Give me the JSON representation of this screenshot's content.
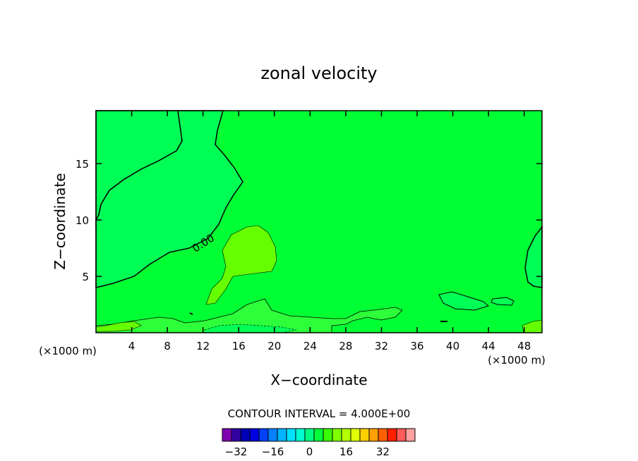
{
  "chart_data": {
    "type": "contour",
    "title": "zonal velocity",
    "xlabel": "X−coordinate",
    "ylabel": "Z−coordinate",
    "x_unit_left": "(×1000 m)",
    "x_unit_right": "(×1000 m)",
    "xlim": [
      0,
      50
    ],
    "ylim": [
      0,
      19.7
    ],
    "x_ticks": [
      "4",
      "8",
      "12",
      "16",
      "20",
      "24",
      "28",
      "32",
      "36",
      "40",
      "44",
      "48"
    ],
    "x_tick_values": [
      4,
      8,
      12,
      16,
      20,
      24,
      28,
      32,
      36,
      40,
      44,
      48
    ],
    "y_ticks": [
      "5",
      "10",
      "15"
    ],
    "y_tick_values": [
      5,
      10,
      15
    ],
    "contour_label": "0.00",
    "contour_interval_text": "CONTOUR INTERVAL = 4.000E+00",
    "colorbar": {
      "levels": [
        -36,
        -32,
        -28,
        -24,
        -20,
        -16,
        -12,
        -8,
        -4,
        0,
        4,
        8,
        12,
        16,
        20,
        24,
        28,
        32,
        36
      ],
      "colors": [
        "#8000b0",
        "#3300a0",
        "#0000b4",
        "#0000e0",
        "#0040ff",
        "#0080ff",
        "#00b4ff",
        "#00e0ff",
        "#00ffd0",
        "#00ff80",
        "#00ff3a",
        "#3aff00",
        "#80ff00",
        "#b4ff00",
        "#e0ff00",
        "#ffd000",
        "#ffa000",
        "#ff6000",
        "#ff2000",
        "#ff5a5a",
        "#ffa0a0"
      ],
      "tick_labels": [
        "−32",
        "−16",
        "0",
        "16",
        "32"
      ],
      "tick_values": [
        -32,
        -16,
        0,
        16,
        32
      ]
    },
    "regions": [
      {
        "name": "negative-upper-left",
        "fill": "#00ff50"
      },
      {
        "name": "positive-core",
        "fill": "#66ff00"
      },
      {
        "name": "negative-right",
        "fill": "#00ff50"
      }
    ],
    "background_fill": "#00ff33"
  }
}
